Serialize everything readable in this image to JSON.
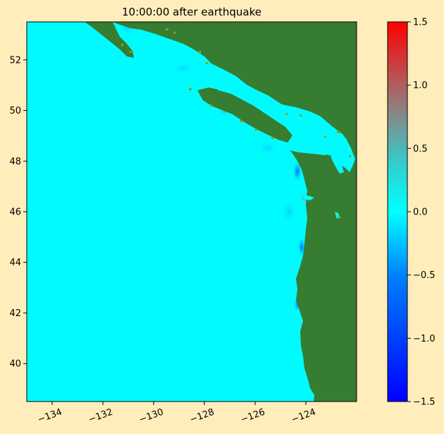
{
  "title": "10:00:00 after earthquake",
  "map": {
    "x_ticks": [
      "−134",
      "−132",
      "−130",
      "−128",
      "−126",
      "−124"
    ],
    "x_tick_values": [
      -134,
      -132,
      -130,
      -128,
      -126,
      -124
    ],
    "y_ticks": [
      "40",
      "42",
      "44",
      "46",
      "48",
      "50",
      "52"
    ],
    "y_tick_values": [
      40,
      42,
      44,
      46,
      48,
      50,
      52
    ],
    "lon_range": [
      -135.0,
      -122.0
    ],
    "lat_range": [
      38.5,
      53.5
    ],
    "land_color": "#367d32",
    "ocean_color": "#00fbff"
  },
  "colorbar": {
    "ticks": [
      "−1.5",
      "−1.0",
      "−0.5",
      "0.0",
      "0.5",
      "1.0",
      "1.5"
    ],
    "tick_values": [
      -1.5,
      -1.0,
      -0.5,
      0.0,
      0.5,
      1.0,
      1.5
    ],
    "range": [
      -1.5,
      1.5
    ],
    "colors": [
      "#0000ff",
      "#00a0ff",
      "#00ffff",
      "#40c0c0",
      "#a07070",
      "#ff0000"
    ]
  }
}
